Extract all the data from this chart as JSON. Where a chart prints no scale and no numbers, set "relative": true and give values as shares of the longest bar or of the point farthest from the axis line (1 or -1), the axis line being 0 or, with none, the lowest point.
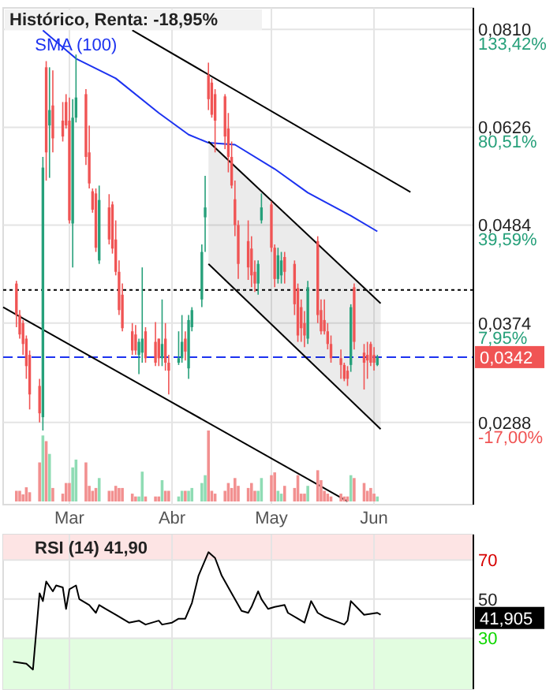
{
  "chart_data": [
    {
      "type": "candlestick",
      "title": "Histórico, Renta: -18,95%",
      "x": [
        "--02-13",
        "--02-14",
        "--02-15",
        "--02-16",
        "--02-17",
        "--02-20",
        "--02-21",
        "--02-22",
        "--02-23",
        "--02-24",
        "--02-27",
        "--02-28",
        "--03-01",
        "--03-02",
        "--03-03",
        "--03-06",
        "--03-07",
        "--03-08",
        "--03-09",
        "--03-10",
        "--03-13",
        "--03-14",
        "--03-15",
        "--03-16",
        "--03-17",
        "--03-20",
        "--03-21",
        "--03-22",
        "--03-23",
        "--03-24",
        "--03-27",
        "--03-28",
        "--03-29",
        "--03-30",
        "--03-31",
        "--04-03",
        "--04-04",
        "--04-05",
        "--04-06",
        "--04-07",
        "--04-10",
        "--04-11",
        "--04-12",
        "--04-13",
        "--04-14",
        "--04-17",
        "--04-18",
        "--04-19",
        "--04-20",
        "--04-21",
        "--04-24",
        "--04-25",
        "--04-26",
        "--04-27",
        "--04-28",
        "--05-01",
        "--05-02",
        "--05-03",
        "--05-04",
        "--05-05",
        "--05-08",
        "--05-09",
        "--05-10",
        "--05-11",
        "--05-12",
        "--05-15",
        "--05-16",
        "--05-17",
        "--05-18",
        "--05-19",
        "--05-22",
        "--05-23",
        "--05-24",
        "--05-25",
        "--05-26",
        "--05-29",
        "--05-30",
        "--05-31",
        "--06-01",
        "--06-02"
      ],
      "ohlc": [
        [
          0.0415,
          0.0418,
          0.037,
          0.0382
        ],
        [
          0.0382,
          0.0387,
          0.0359,
          0.0363
        ],
        [
          0.0374,
          0.0377,
          0.0344,
          0.0354
        ],
        [
          0.0359,
          0.0362,
          0.0323,
          0.0334
        ],
        [
          0.0344,
          0.0348,
          0.0298,
          0.031
        ],
        [
          0.0317,
          0.0323,
          0.0288,
          0.0295
        ],
        [
          0.0292,
          0.0579,
          0.0282,
          0.0563
        ],
        [
          0.0733,
          0.0745,
          0.0544,
          0.0586
        ],
        [
          0.0629,
          0.0733,
          0.0548,
          0.0655
        ],
        [
          0.0663,
          0.0727,
          0.0586,
          0.0608
        ],
        [
          0.0637,
          0.0669,
          0.0603,
          0.0611
        ],
        [
          0.0669,
          0.0683,
          0.0624,
          0.0629
        ],
        [
          0.0637,
          0.0677,
          0.0486,
          0.049
        ],
        [
          0.0486,
          0.0674,
          0.0433,
          0.0642
        ],
        [
          0.0642,
          0.0758,
          0.0634,
          0.0677
        ],
        [
          0.0683,
          0.0692,
          0.0567,
          0.0579
        ],
        [
          0.0586,
          0.0629,
          0.0533,
          0.054
        ],
        [
          0.0529,
          0.0533,
          0.05,
          0.0504
        ],
        [
          0.0526,
          0.0533,
          0.0451,
          0.0456
        ],
        [
          0.0441,
          0.0537,
          0.0437,
          0.0517
        ],
        [
          0.0507,
          0.0525,
          0.046,
          0.0466
        ],
        [
          0.0511,
          0.0515,
          0.0449,
          0.0455
        ],
        [
          0.0466,
          0.049,
          0.0424,
          0.0428
        ],
        [
          0.0428,
          0.0441,
          0.0382,
          0.0387
        ],
        [
          0.0403,
          0.0415,
          0.0366,
          0.0369
        ],
        [
          0.0366,
          0.0374,
          0.0344,
          0.0348
        ],
        [
          0.0363,
          0.0372,
          0.0344,
          0.0348
        ],
        [
          0.0344,
          0.0359,
          0.0327,
          0.0356
        ],
        [
          0.0346,
          0.0433,
          0.0337,
          0.0359
        ],
        [
          0.0366,
          0.037,
          0.0337,
          0.0341
        ],
        [
          0.0356,
          0.0375,
          0.0334,
          0.0337
        ],
        [
          0.0359,
          0.0359,
          0.0334,
          0.0341
        ],
        [
          0.0341,
          0.0398,
          0.0334,
          0.0354
        ],
        [
          0.0359,
          0.0374,
          0.033,
          0.0337
        ],
        [
          0.0337,
          0.0344,
          0.031,
          0.033
        ],
        [
          0.0337,
          0.0366,
          0.0335,
          0.0341
        ],
        [
          0.0341,
          0.0382,
          0.0337,
          0.0356
        ],
        [
          0.0359,
          0.0366,
          0.0339,
          0.0347
        ],
        [
          0.0332,
          0.0382,
          0.0323,
          0.0377
        ],
        [
          0.037,
          0.039,
          0.0366,
          0.0387
        ],
        [
          0.0398,
          0.046,
          0.039,
          0.0451
        ],
        [
          0.0494,
          0.0551,
          0.0451,
          0.0507
        ],
        [
          0.0718,
          0.0742,
          0.0655,
          0.0674
        ],
        [
          0.0704,
          0.0712,
          0.0642,
          0.0647
        ],
        [
          0.0683,
          0.0692,
          0.0586,
          0.0637
        ],
        [
          0.0679,
          0.0683,
          0.0591,
          0.0611
        ],
        [
          0.0624,
          0.065,
          0.0556,
          0.0579
        ],
        [
          0.0579,
          0.0603,
          0.0533,
          0.0537
        ],
        [
          0.0518,
          0.0544,
          0.047,
          0.0484
        ],
        [
          0.0484,
          0.049,
          0.042,
          0.0437
        ],
        [
          0.0464,
          0.049,
          0.0419,
          0.0433
        ],
        [
          0.0455,
          0.047,
          0.0411,
          0.0424
        ],
        [
          0.0428,
          0.0441,
          0.0406,
          0.0415
        ],
        [
          0.0415,
          0.0441,
          0.0403,
          0.0437
        ],
        [
          0.049,
          0.0526,
          0.0486,
          0.0507
        ],
        [
          0.0511,
          0.0515,
          0.0451,
          0.0456
        ],
        [
          0.0456,
          0.046,
          0.0411,
          0.042
        ],
        [
          0.042,
          0.0456,
          0.0415,
          0.0447
        ],
        [
          0.0424,
          0.0451,
          0.0415,
          0.0441
        ],
        [
          0.0445,
          0.0451,
          0.0415,
          0.0428
        ],
        [
          0.0437,
          0.0441,
          0.0382,
          0.0393
        ],
        [
          0.041,
          0.0415,
          0.0356,
          0.0362
        ],
        [
          0.039,
          0.0398,
          0.0356,
          0.0369
        ],
        [
          0.0374,
          0.0386,
          0.0351,
          0.0362
        ],
        [
          0.0359,
          0.0418,
          0.0354,
          0.0411
        ],
        [
          0.0464,
          0.047,
          0.0374,
          0.0382
        ],
        [
          0.0387,
          0.0398,
          0.0363,
          0.0366
        ],
        [
          0.0377,
          0.0398,
          0.0363,
          0.0366
        ],
        [
          0.0366,
          0.0374,
          0.0349,
          0.0354
        ],
        [
          0.0354,
          0.0362,
          0.0337,
          0.0341
        ],
        [
          0.0341,
          0.0349,
          0.0323,
          0.0335
        ],
        [
          0.0335,
          0.0337,
          0.0321,
          0.0323
        ],
        [
          0.033,
          0.0334,
          0.0317,
          0.0323
        ],
        [
          0.0335,
          0.0393,
          0.0329,
          0.039
        ],
        [
          0.0411,
          0.0415,
          0.0349,
          0.0356
        ],
        [
          0.0346,
          0.0354,
          0.0314,
          0.0337
        ],
        [
          0.0344,
          0.0356,
          0.0323,
          0.0339
        ],
        [
          0.0354,
          0.0356,
          0.0334,
          0.0337
        ],
        [
          0.0344,
          0.0351,
          0.033,
          0.0337
        ],
        [
          0.0335,
          0.0344,
          0.0334,
          0.0342
        ]
      ],
      "series": [
        {
          "name": "SMA (100)",
          "type": "line",
          "color": "#1c32f0",
          "x": [
            "--02-21",
            "--03-03",
            "--03-15",
            "--03-28",
            "--04-06",
            "--04-12",
            "--04-20",
            "--05-02",
            "--05-12",
            "--05-25",
            "--06-02"
          ],
          "values": [
            0.0808,
            0.075,
            0.0712,
            0.065,
            0.0614,
            0.0601,
            0.0598,
            0.0561,
            0.0527,
            0.0496,
            0.0476
          ]
        },
        {
          "type": "line",
          "color": "#000000",
          "x": [
            "--03-20",
            "--06-12"
          ],
          "values": [
            0.0808,
            0.0528
          ]
        },
        {
          "type": "line",
          "color": "#000000",
          "x": [
            "--04-12",
            "--06-03"
          ],
          "values": [
            0.0603,
            0.0394
          ],
          "lower": [
            0.0437,
            0.0283
          ],
          "upper": [
            0.0603,
            0.0394
          ]
        },
        {
          "type": "line",
          "color": "#000000",
          "x": [
            "--04-12",
            "--06-03"
          ],
          "values": [
            0.0437,
            0.0283
          ]
        },
        {
          "type": "line",
          "color": "#000000",
          "x": [
            "--02-09",
            "--05-24"
          ],
          "values": [
            0.039,
            0.0234
          ]
        }
      ],
      "ref_lines": [
        {
          "axis": "y",
          "value": 0.0408,
          "color": "#000000",
          "line_style": "dotted"
        },
        {
          "axis": "y",
          "value": 0.0342,
          "label": "0,0342",
          "color": "#1c32f0",
          "line_style": "dashed"
        }
      ],
      "xlim": [
        "--02-09",
        "--07-01"
      ],
      "xticks": [
        {
          "value": "--03-01",
          "label": "Mar"
        },
        {
          "value": "--04-01",
          "label": "Abr"
        },
        {
          "value": "--05-01",
          "label": "May"
        },
        {
          "value": "--06-01",
          "label": "Jun"
        }
      ],
      "ylim": [
        0.0232,
        0.0857
      ],
      "yticks": [
        {
          "value": 0.0288,
          "label": "0,0288"
        },
        {
          "value": 0.0374,
          "label": "0,0374"
        },
        {
          "value": 0.0484,
          "label": "0,0484"
        },
        {
          "value": 0.0626,
          "label": "0,0626"
        },
        {
          "value": 0.081,
          "label": "0,0810"
        }
      ],
      "annotations": [
        "-17,00%",
        "7,95%",
        "39,59%",
        "80,51%",
        "133,42%"
      ],
      "log": "y",
      "grid": true
    },
    {
      "type": "bar",
      "relative": true,
      "x": [
        "--02-13",
        "--02-14",
        "--02-15",
        "--02-16",
        "--02-17",
        "--02-20",
        "--02-21",
        "--02-22",
        "--02-23",
        "--02-24",
        "--02-27",
        "--02-28",
        "--03-01",
        "--03-02",
        "--03-03",
        "--03-06",
        "--03-07",
        "--03-08",
        "--03-09",
        "--03-10",
        "--03-13",
        "--03-14",
        "--03-15",
        "--03-16",
        "--03-17",
        "--03-20",
        "--03-21",
        "--03-22",
        "--03-23",
        "--03-24",
        "--03-27",
        "--03-28",
        "--03-29",
        "--03-30",
        "--03-31",
        "--04-03",
        "--04-04",
        "--04-05",
        "--04-06",
        "--04-07",
        "--04-10",
        "--04-11",
        "--04-12",
        "--04-13",
        "--04-14",
        "--04-17",
        "--04-18",
        "--04-19",
        "--04-20",
        "--04-21",
        "--04-24",
        "--04-25",
        "--04-26",
        "--04-27",
        "--04-28",
        "--05-01",
        "--05-02",
        "--05-03",
        "--05-04",
        "--05-05",
        "--05-08",
        "--05-09",
        "--05-10",
        "--05-11",
        "--05-12",
        "--05-15",
        "--05-16",
        "--05-17",
        "--05-18",
        "--05-19",
        "--05-22",
        "--05-23",
        "--05-24",
        "--05-25",
        "--05-26",
        "--05-29",
        "--05-30",
        "--05-31",
        "--06-01",
        "--06-02"
      ],
      "values": [
        0.15,
        0.15,
        0.1,
        0.2,
        0.13,
        0.55,
        0.93,
        0.85,
        0.67,
        0.19,
        0.11,
        0.26,
        0.26,
        0.48,
        0.59,
        0.55,
        0.22,
        0.15,
        0.19,
        0.33,
        0.15,
        0.15,
        0.22,
        0.19,
        0.19,
        0.11,
        0.07,
        0.07,
        0.42,
        0.07,
        0.07,
        0.07,
        0.3,
        0.15,
        0.15,
        0.07,
        0.15,
        0.15,
        0.15,
        0.19,
        0.26,
        0.37,
        1,
        0.15,
        0.11,
        0.15,
        0.26,
        0.19,
        0.33,
        0.22,
        0.19,
        0.26,
        0.15,
        0.15,
        0.33,
        0.37,
        0.41,
        0.15,
        0.11,
        0.22,
        0.19,
        0.37,
        0.11,
        0.11,
        0.22,
        0.44,
        0.3,
        0.15,
        0.11,
        0.07,
        0.11,
        0.07,
        0.07,
        0.37,
        0.33,
        0.26,
        0.15,
        0.19,
        0.11,
        0.07
      ],
      "colors": [
        "#f29090",
        "#f29090",
        "#f29090",
        "#f29090",
        "#f29090",
        "#f29090",
        "#8fdcb4",
        "#f29090",
        "#8fdcb4",
        "#f29090",
        "#f29090",
        "#f29090",
        "#f29090",
        "#8fdcb4",
        "#8fdcb4",
        "#f29090",
        "#f29090",
        "#f29090",
        "#f29090",
        "#8fdcb4",
        "#f29090",
        "#f29090",
        "#f29090",
        "#f29090",
        "#f29090",
        "#f29090",
        "#f29090",
        "#8fdcb4",
        "#8fdcb4",
        "#f29090",
        "#f29090",
        "#f29090",
        "#8fdcb4",
        "#f29090",
        "#f29090",
        "#8fdcb4",
        "#8fdcb4",
        "#f29090",
        "#8fdcb4",
        "#8fdcb4",
        "#8fdcb4",
        "#8fdcb4",
        "#f29090",
        "#f29090",
        "#f29090",
        "#f29090",
        "#f29090",
        "#f29090",
        "#f29090",
        "#f29090",
        "#f29090",
        "#f29090",
        "#f29090",
        "#8fdcb4",
        "#8fdcb4",
        "#f29090",
        "#f29090",
        "#8fdcb4",
        "#8fdcb4",
        "#f29090",
        "#f29090",
        "#f29090",
        "#f29090",
        "#f29090",
        "#8fdcb4",
        "#f29090",
        "#f29090",
        "#f29090",
        "#f29090",
        "#f29090",
        "#f29090",
        "#f29090",
        "#f29090",
        "#8fdcb4",
        "#f29090",
        "#f29090",
        "#f29090",
        "#f29090",
        "#f29090",
        "#8fdcb4"
      ],
      "xlim": [
        "--02-09",
        "--07-01"
      ],
      "tick_labels": false
    },
    {
      "type": "line",
      "title": "RSI (14)   41,90",
      "color": "#000000",
      "x": [
        "--02-12",
        "--02-16",
        "--02-18",
        "--02-20",
        "--02-21",
        "--02-22",
        "--02-24",
        "--02-25",
        "--02-27",
        "--02-28",
        "--03-01",
        "--03-03",
        "--03-04",
        "--03-07",
        "--03-09",
        "--03-10",
        "--03-12",
        "--03-15",
        "--03-19",
        "--03-22",
        "--03-24",
        "--03-28",
        "--03-29",
        "--04-01",
        "--04-03",
        "--04-05",
        "--04-07",
        "--04-09",
        "--04-12",
        "--04-14",
        "--04-16",
        "--04-19",
        "--04-22",
        "--04-24",
        "--04-25",
        "--04-27",
        "--04-28",
        "--04-30",
        "--05-02",
        "--05-05",
        "--05-06",
        "--05-09",
        "--05-11",
        "--05-13",
        "--05-15",
        "--05-17",
        "--05-20",
        "--05-23",
        "--05-24",
        "--05-25",
        "--05-29",
        "--06-02",
        "--06-03"
      ],
      "values": [
        18,
        17,
        14,
        53,
        49,
        59,
        54,
        57,
        56,
        45,
        55,
        57,
        50,
        47,
        43,
        47,
        45,
        42,
        38,
        39,
        37,
        39,
        37,
        38,
        40,
        40,
        48,
        62,
        74,
        71,
        62,
        53,
        44,
        43,
        46,
        54,
        50,
        45,
        46,
        47,
        43,
        40,
        38,
        49,
        43,
        41,
        39,
        37,
        39,
        49,
        42,
        43,
        42
      ],
      "annotations": [
        "41,905"
      ],
      "bands": [
        {
          "axis": "y",
          "from": 70,
          "to": 83,
          "color": "#fde4e4"
        },
        {
          "axis": "y",
          "from": 4,
          "to": 30,
          "color": "#e2fde0"
        }
      ],
      "xlim": [
        "--02-09",
        "--07-01"
      ],
      "xticks": [
        {
          "value": "--03-01",
          "label": null
        },
        {
          "value": "--04-01",
          "label": null
        },
        {
          "value": "--05-01",
          "label": null
        },
        {
          "value": "--06-01",
          "label": null
        }
      ],
      "ylim": [
        4,
        83
      ],
      "yticks": [
        30,
        50,
        70
      ],
      "grid": true,
      "tick_labels": "y"
    }
  ]
}
